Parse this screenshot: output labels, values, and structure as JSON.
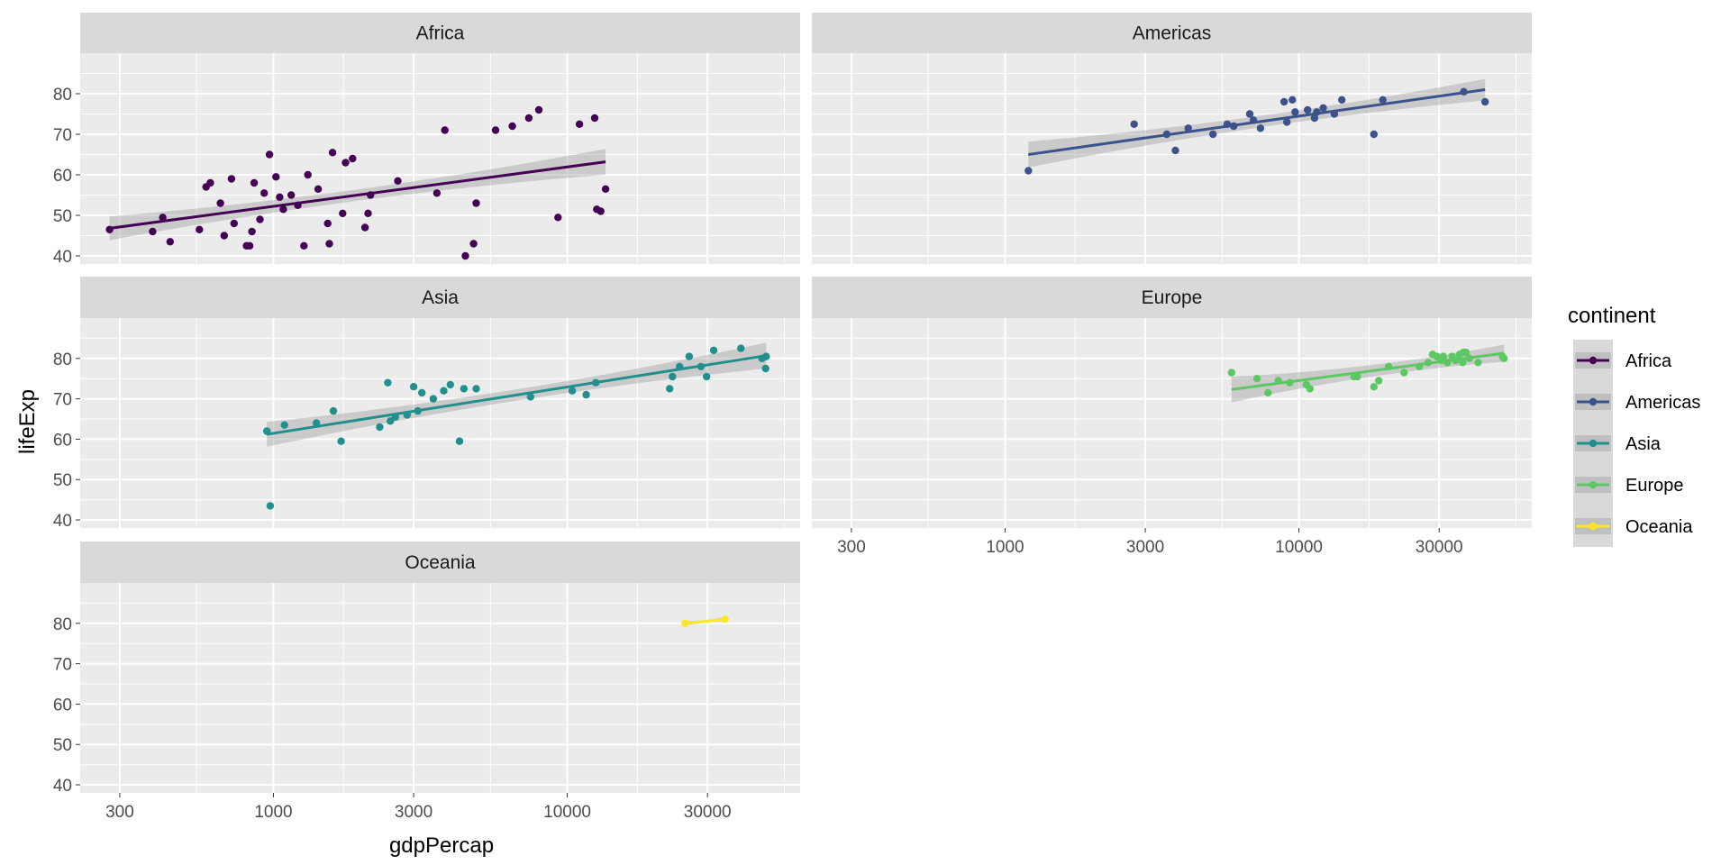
{
  "chart_data": {
    "type": "scatter",
    "facet_by": "continent",
    "x_scale": "log10",
    "xlabel": "gdpPercap",
    "ylabel": "lifeExp",
    "xlim": [
      220,
      62000
    ],
    "ylim": [
      38,
      90
    ],
    "x_ticks": [
      300,
      1000,
      3000,
      10000,
      30000
    ],
    "x_tick_labels": [
      "300",
      "1000",
      "3000",
      "10000",
      "30000"
    ],
    "y_ticks": [
      40,
      50,
      60,
      70,
      80
    ],
    "y_tick_labels": [
      "40",
      "50",
      "60",
      "70",
      "80"
    ],
    "grid": true,
    "smooth": "lm with confidence band",
    "legend": {
      "title": "continent",
      "position": "right",
      "entries": [
        "Africa",
        "Americas",
        "Asia",
        "Europe",
        "Oceania"
      ]
    },
    "colors": {
      "Africa": "#440154",
      "Americas": "#3b528b",
      "Asia": "#21908c",
      "Europe": "#5dc863",
      "Oceania": "#fde725",
      "panel_bg": "#ebebeb",
      "strip_bg": "#d9d9d9",
      "band": "#999999"
    },
    "panels": [
      {
        "name": "Africa",
        "points": [
          [
            277,
            46.5
          ],
          [
            388,
            46.0
          ],
          [
            420,
            49.5
          ],
          [
            445,
            43.5
          ],
          [
            560,
            46.5
          ],
          [
            590,
            57.0
          ],
          [
            610,
            58.0
          ],
          [
            660,
            53.0
          ],
          [
            680,
            45.0
          ],
          [
            720,
            59.0
          ],
          [
            735,
            48.0
          ],
          [
            810,
            42.5
          ],
          [
            830,
            42.5
          ],
          [
            845,
            46.0
          ],
          [
            860,
            58.0
          ],
          [
            900,
            49.0
          ],
          [
            930,
            55.5
          ],
          [
            970,
            65.0
          ],
          [
            1020,
            59.5
          ],
          [
            1050,
            54.5
          ],
          [
            1080,
            51.5
          ],
          [
            1150,
            55.0
          ],
          [
            1210,
            52.5
          ],
          [
            1270,
            42.5
          ],
          [
            1310,
            60.0
          ],
          [
            1420,
            56.5
          ],
          [
            1530,
            48.0
          ],
          [
            1550,
            43.0
          ],
          [
            1590,
            65.5
          ],
          [
            1720,
            50.5
          ],
          [
            1760,
            63.0
          ],
          [
            1860,
            64.0
          ],
          [
            2050,
            47.0
          ],
          [
            2100,
            50.5
          ],
          [
            2140,
            55.0
          ],
          [
            2650,
            58.5
          ],
          [
            3600,
            55.5
          ],
          [
            3830,
            71.0
          ],
          [
            4500,
            40.0
          ],
          [
            4800,
            43.0
          ],
          [
            4900,
            53.0
          ],
          [
            5700,
            71.0
          ],
          [
            6500,
            72.0
          ],
          [
            7400,
            74.0
          ],
          [
            8000,
            76.0
          ],
          [
            9300,
            49.5
          ],
          [
            11000,
            72.5
          ],
          [
            12400,
            74.0
          ],
          [
            12600,
            51.5
          ],
          [
            13000,
            51.0
          ],
          [
            13500,
            56.5
          ]
        ],
        "fit": [
          [
            277,
            46.8
          ],
          [
            13500,
            63.2
          ]
        ]
      },
      {
        "name": "Americas",
        "points": [
          [
            1200,
            61.0
          ],
          [
            2750,
            72.5
          ],
          [
            3550,
            70.0
          ],
          [
            3800,
            66.0
          ],
          [
            4200,
            71.5
          ],
          [
            5100,
            70.0
          ],
          [
            5700,
            72.5
          ],
          [
            6000,
            72.0
          ],
          [
            6800,
            75.0
          ],
          [
            7000,
            73.5
          ],
          [
            7400,
            71.5
          ],
          [
            8900,
            78.0
          ],
          [
            9100,
            73.0
          ],
          [
            9500,
            78.5
          ],
          [
            9700,
            75.5
          ],
          [
            10700,
            76.0
          ],
          [
            11300,
            74.0
          ],
          [
            11500,
            75.5
          ],
          [
            12100,
            76.5
          ],
          [
            13200,
            75.0
          ],
          [
            14000,
            78.5
          ],
          [
            18000,
            70.0
          ],
          [
            19300,
            78.5
          ],
          [
            36400,
            80.5
          ],
          [
            43000,
            78.0
          ]
        ],
        "fit": [
          [
            1200,
            65.0
          ],
          [
            43000,
            81.0
          ]
        ]
      },
      {
        "name": "Asia",
        "points": [
          [
            950,
            62.0
          ],
          [
            975,
            43.5
          ],
          [
            1090,
            63.5
          ],
          [
            1400,
            64.0
          ],
          [
            1600,
            67.0
          ],
          [
            1700,
            59.5
          ],
          [
            2300,
            63.0
          ],
          [
            2450,
            74.0
          ],
          [
            2500,
            64.5
          ],
          [
            2600,
            65.5
          ],
          [
            2850,
            66.0
          ],
          [
            3000,
            73.0
          ],
          [
            3100,
            67.0
          ],
          [
            3200,
            71.5
          ],
          [
            3500,
            70.0
          ],
          [
            3800,
            72.0
          ],
          [
            4000,
            73.5
          ],
          [
            4300,
            59.5
          ],
          [
            4450,
            72.5
          ],
          [
            4900,
            72.5
          ],
          [
            7500,
            70.5
          ],
          [
            10400,
            72.0
          ],
          [
            11600,
            71.0
          ],
          [
            12500,
            74.0
          ],
          [
            22300,
            72.5
          ],
          [
            22800,
            75.5
          ],
          [
            24100,
            78.0
          ],
          [
            26000,
            80.5
          ],
          [
            28500,
            78.0
          ],
          [
            29800,
            75.5
          ],
          [
            31500,
            82.0
          ],
          [
            39000,
            82.5
          ],
          [
            46000,
            80.0
          ],
          [
            47300,
            77.5
          ],
          [
            47500,
            80.5
          ]
        ],
        "fit": [
          [
            950,
            61.2
          ],
          [
            47500,
            80.7
          ]
        ]
      },
      {
        "name": "Europe",
        "points": [
          [
            5900,
            76.5
          ],
          [
            7200,
            75.0
          ],
          [
            7850,
            71.5
          ],
          [
            8500,
            74.5
          ],
          [
            9300,
            74.0
          ],
          [
            10600,
            73.5
          ],
          [
            10900,
            72.5
          ],
          [
            15400,
            75.5
          ],
          [
            15800,
            75.5
          ],
          [
            18000,
            73.0
          ],
          [
            18700,
            74.5
          ],
          [
            20200,
            78.0
          ],
          [
            22800,
            76.5
          ],
          [
            25700,
            78.0
          ],
          [
            27500,
            79.0
          ],
          [
            28500,
            81.0
          ],
          [
            29500,
            80.5
          ],
          [
            30500,
            79.5
          ],
          [
            31000,
            80.5
          ],
          [
            32000,
            79.0
          ],
          [
            33200,
            80.5
          ],
          [
            34100,
            79.5
          ],
          [
            35200,
            81.0
          ],
          [
            36100,
            79.0
          ],
          [
            36300,
            81.5
          ],
          [
            37000,
            81.5
          ],
          [
            38000,
            80.0
          ],
          [
            40700,
            79.0
          ],
          [
            49300,
            80.5
          ],
          [
            49900,
            80.0
          ]
        ],
        "fit": [
          [
            5900,
            72.3
          ],
          [
            49900,
            81.3
          ]
        ]
      },
      {
        "name": "Oceania",
        "points": [
          [
            25200,
            80.0
          ],
          [
            34400,
            81.0
          ]
        ],
        "fit": [
          [
            25200,
            80.0
          ],
          [
            34400,
            81.0
          ]
        ]
      }
    ]
  }
}
